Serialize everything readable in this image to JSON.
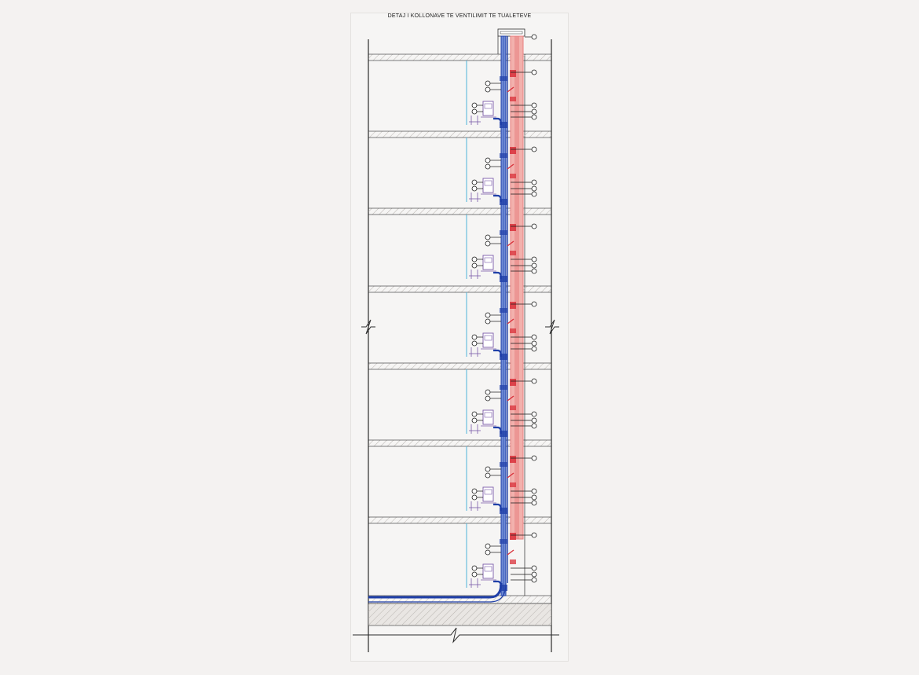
{
  "drawing": {
    "title": "DETAJ I KOLLONAVE TE VENTILIMIT TE TUALETEVE",
    "floors": 7,
    "colors": {
      "background": "#f4f2f1",
      "sheet": "#f6f5f4",
      "outline": "#2b2b2b",
      "slab_fill": "#e9e6e3",
      "hatch": "#b9b5b1",
      "glass": "#5cb8dc",
      "drain_pipe": "#1f3fa8",
      "drain_pipe_light": "#6f8bd6",
      "vent_pipe": "#e87f7f",
      "vent_pipe_light": "#f2b1ad",
      "vent_fitting": "#d9303a",
      "fixture": "#7a5aa8",
      "leader": "#1a1a1a"
    }
  }
}
